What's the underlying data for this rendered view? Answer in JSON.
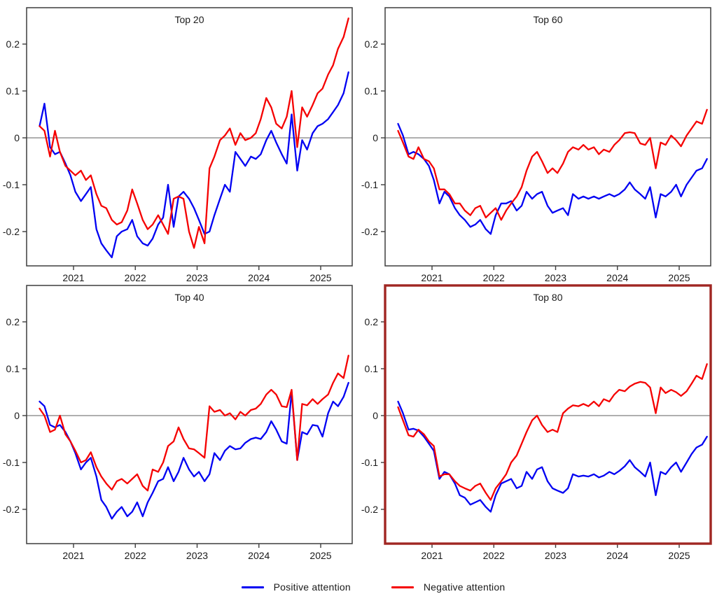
{
  "chart_data": {
    "type": "line",
    "layout": "2x2-grid",
    "legend_position": "bottom-center",
    "highlight_color": "#a02622",
    "frame_color": "#3d3d3d",
    "zero_line": true,
    "zero_line_color": "#7f7f7f",
    "x_tick_labels": [
      "2021",
      "2022",
      "2023",
      "2024",
      "2025"
    ],
    "x_ticks": [
      2021,
      2022,
      2023,
      2024,
      2025
    ],
    "y_tick_labels": [
      "0.2",
      "0.1",
      "0",
      "-0.1",
      "-0.2"
    ],
    "y_ticks": [
      0.2,
      0.1,
      0,
      -0.1,
      -0.2
    ],
    "xlim": [
      2020.24,
      2025.51
    ],
    "ylim": [
      -0.273,
      0.278
    ],
    "legend": [
      {
        "label": "Positive attention",
        "color": "#0000f2"
      },
      {
        "label": "Negative attention",
        "color": "#f50000"
      }
    ],
    "x": [
      2020.45,
      2020.53,
      2020.62,
      2020.7,
      2020.78,
      2020.87,
      2020.95,
      2021.03,
      2021.12,
      2021.2,
      2021.28,
      2021.37,
      2021.45,
      2021.53,
      2021.62,
      2021.7,
      2021.78,
      2021.87,
      2021.95,
      2022.03,
      2022.12,
      2022.2,
      2022.28,
      2022.37,
      2022.45,
      2022.53,
      2022.62,
      2022.7,
      2022.78,
      2022.87,
      2022.95,
      2023.03,
      2023.12,
      2023.2,
      2023.28,
      2023.37,
      2023.45,
      2023.53,
      2023.62,
      2023.7,
      2023.78,
      2023.87,
      2023.95,
      2024.03,
      2024.12,
      2024.2,
      2024.28,
      2024.37,
      2024.45,
      2024.53,
      2024.62,
      2024.7,
      2024.78,
      2024.87,
      2024.95,
      2025.03,
      2025.12,
      2025.2,
      2025.28,
      2025.37,
      2025.45
    ],
    "panels": [
      {
        "title": "Top 20",
        "grid_position": "top-left",
        "highlighted": false,
        "series": [
          {
            "name": "Positive attention",
            "values": [
              0.025,
              0.073,
              -0.02,
              -0.035,
              -0.03,
              -0.055,
              -0.08,
              -0.115,
              -0.135,
              -0.12,
              -0.105,
              -0.195,
              -0.225,
              -0.24,
              -0.255,
              -0.21,
              -0.2,
              -0.195,
              -0.175,
              -0.21,
              -0.225,
              -0.23,
              -0.215,
              -0.185,
              -0.17,
              -0.1,
              -0.19,
              -0.125,
              -0.115,
              -0.13,
              -0.15,
              -0.175,
              -0.205,
              -0.2,
              -0.165,
              -0.13,
              -0.1,
              -0.115,
              -0.03,
              -0.045,
              -0.06,
              -0.04,
              -0.045,
              -0.035,
              -0.005,
              0.015,
              -0.01,
              -0.035,
              -0.055,
              0.05,
              -0.07,
              -0.005,
              -0.025,
              0.01,
              0.025,
              0.03,
              0.04,
              0.055,
              0.07,
              0.095,
              0.14
            ]
          },
          {
            "name": "Negative attention",
            "values": [
              0.025,
              0.015,
              -0.04,
              0.015,
              -0.03,
              -0.06,
              -0.07,
              -0.08,
              -0.07,
              -0.09,
              -0.08,
              -0.12,
              -0.145,
              -0.15,
              -0.175,
              -0.185,
              -0.18,
              -0.155,
              -0.11,
              -0.14,
              -0.175,
              -0.195,
              -0.185,
              -0.165,
              -0.185,
              -0.205,
              -0.13,
              -0.125,
              -0.13,
              -0.2,
              -0.235,
              -0.19,
              -0.225,
              -0.065,
              -0.04,
              -0.005,
              0.005,
              0.02,
              -0.015,
              0.01,
              -0.005,
              0.0,
              0.01,
              0.04,
              0.085,
              0.065,
              0.03,
              0.02,
              0.045,
              0.1,
              -0.02,
              0.065,
              0.045,
              0.07,
              0.095,
              0.105,
              0.135,
              0.155,
              0.19,
              0.215,
              0.255
            ]
          }
        ]
      },
      {
        "title": "Top 60",
        "grid_position": "top-right",
        "highlighted": false,
        "series": [
          {
            "name": "Positive attention",
            "values": [
              0.03,
              0.005,
              -0.035,
              -0.03,
              -0.035,
              -0.045,
              -0.06,
              -0.09,
              -0.14,
              -0.115,
              -0.125,
              -0.15,
              -0.165,
              -0.175,
              -0.19,
              -0.185,
              -0.175,
              -0.195,
              -0.205,
              -0.165,
              -0.14,
              -0.14,
              -0.135,
              -0.155,
              -0.145,
              -0.115,
              -0.13,
              -0.12,
              -0.115,
              -0.145,
              -0.16,
              -0.155,
              -0.15,
              -0.165,
              -0.12,
              -0.13,
              -0.125,
              -0.13,
              -0.125,
              -0.13,
              -0.125,
              -0.12,
              -0.125,
              -0.12,
              -0.11,
              -0.095,
              -0.11,
              -0.12,
              -0.13,
              -0.105,
              -0.17,
              -0.12,
              -0.125,
              -0.115,
              -0.1,
              -0.125,
              -0.1,
              -0.085,
              -0.07,
              -0.065,
              -0.045
            ]
          },
          {
            "name": "Negative attention",
            "values": [
              0.015,
              -0.01,
              -0.04,
              -0.045,
              -0.02,
              -0.045,
              -0.05,
              -0.065,
              -0.11,
              -0.11,
              -0.12,
              -0.14,
              -0.14,
              -0.155,
              -0.165,
              -0.15,
              -0.145,
              -0.17,
              -0.16,
              -0.15,
              -0.175,
              -0.155,
              -0.14,
              -0.125,
              -0.105,
              -0.07,
              -0.04,
              -0.03,
              -0.05,
              -0.075,
              -0.065,
              -0.075,
              -0.055,
              -0.03,
              -0.02,
              -0.025,
              -0.015,
              -0.025,
              -0.02,
              -0.035,
              -0.025,
              -0.03,
              -0.015,
              -0.005,
              0.01,
              0.012,
              0.01,
              -0.012,
              -0.015,
              0.0,
              -0.065,
              -0.01,
              -0.015,
              0.005,
              -0.005,
              -0.018,
              0.005,
              0.02,
              0.035,
              0.03,
              0.06
            ]
          }
        ]
      },
      {
        "title": "Top 40",
        "grid_position": "bottom-left",
        "highlighted": false,
        "series": [
          {
            "name": "Positive attention",
            "values": [
              0.03,
              0.02,
              -0.02,
              -0.025,
              -0.02,
              -0.035,
              -0.055,
              -0.08,
              -0.115,
              -0.1,
              -0.09,
              -0.13,
              -0.18,
              -0.195,
              -0.22,
              -0.205,
              -0.195,
              -0.215,
              -0.205,
              -0.185,
              -0.215,
              -0.185,
              -0.165,
              -0.14,
              -0.135,
              -0.11,
              -0.14,
              -0.12,
              -0.09,
              -0.115,
              -0.13,
              -0.12,
              -0.14,
              -0.125,
              -0.08,
              -0.095,
              -0.075,
              -0.065,
              -0.072,
              -0.07,
              -0.058,
              -0.05,
              -0.047,
              -0.05,
              -0.035,
              -0.012,
              -0.03,
              -0.055,
              -0.06,
              0.05,
              -0.095,
              -0.035,
              -0.04,
              -0.02,
              -0.022,
              -0.045,
              0.005,
              0.03,
              0.02,
              0.04,
              0.07
            ]
          },
          {
            "name": "Negative attention",
            "values": [
              0.015,
              0.0,
              -0.035,
              -0.03,
              0.0,
              -0.04,
              -0.055,
              -0.075,
              -0.1,
              -0.095,
              -0.078,
              -0.11,
              -0.13,
              -0.145,
              -0.158,
              -0.14,
              -0.135,
              -0.145,
              -0.135,
              -0.125,
              -0.15,
              -0.16,
              -0.115,
              -0.12,
              -0.1,
              -0.065,
              -0.055,
              -0.025,
              -0.05,
              -0.07,
              -0.072,
              -0.08,
              -0.09,
              0.02,
              0.008,
              0.012,
              0.0,
              0.005,
              -0.008,
              0.008,
              0.0,
              0.012,
              0.015,
              0.025,
              0.045,
              0.055,
              0.045,
              0.02,
              0.018,
              0.055,
              -0.095,
              0.025,
              0.022,
              0.035,
              0.025,
              0.035,
              0.045,
              0.07,
              0.09,
              0.08,
              0.128
            ]
          }
        ]
      },
      {
        "title": "Top 80",
        "grid_position": "bottom-right",
        "highlighted": true,
        "series": [
          {
            "name": "Positive attention",
            "values": [
              0.03,
              0.005,
              -0.03,
              -0.028,
              -0.032,
              -0.045,
              -0.06,
              -0.075,
              -0.135,
              -0.12,
              -0.125,
              -0.145,
              -0.17,
              -0.175,
              -0.19,
              -0.185,
              -0.18,
              -0.195,
              -0.205,
              -0.17,
              -0.145,
              -0.14,
              -0.135,
              -0.155,
              -0.15,
              -0.12,
              -0.135,
              -0.115,
              -0.11,
              -0.14,
              -0.155,
              -0.16,
              -0.165,
              -0.155,
              -0.125,
              -0.13,
              -0.128,
              -0.13,
              -0.125,
              -0.132,
              -0.128,
              -0.12,
              -0.125,
              -0.118,
              -0.108,
              -0.095,
              -0.11,
              -0.12,
              -0.13,
              -0.1,
              -0.17,
              -0.12,
              -0.125,
              -0.11,
              -0.1,
              -0.12,
              -0.1,
              -0.082,
              -0.068,
              -0.062,
              -0.045
            ]
          },
          {
            "name": "Negative attention",
            "values": [
              0.018,
              -0.01,
              -0.042,
              -0.045,
              -0.03,
              -0.04,
              -0.055,
              -0.065,
              -0.13,
              -0.125,
              -0.125,
              -0.14,
              -0.15,
              -0.155,
              -0.16,
              -0.15,
              -0.145,
              -0.165,
              -0.18,
              -0.155,
              -0.14,
              -0.125,
              -0.1,
              -0.085,
              -0.06,
              -0.035,
              -0.01,
              0.0,
              -0.02,
              -0.035,
              -0.03,
              -0.035,
              0.005,
              0.015,
              0.022,
              0.02,
              0.025,
              0.02,
              0.03,
              0.02,
              0.035,
              0.03,
              0.045,
              0.055,
              0.052,
              0.062,
              0.068,
              0.072,
              0.07,
              0.06,
              0.005,
              0.06,
              0.048,
              0.055,
              0.05,
              0.042,
              0.052,
              0.068,
              0.085,
              0.078,
              0.11
            ]
          }
        ]
      }
    ]
  }
}
